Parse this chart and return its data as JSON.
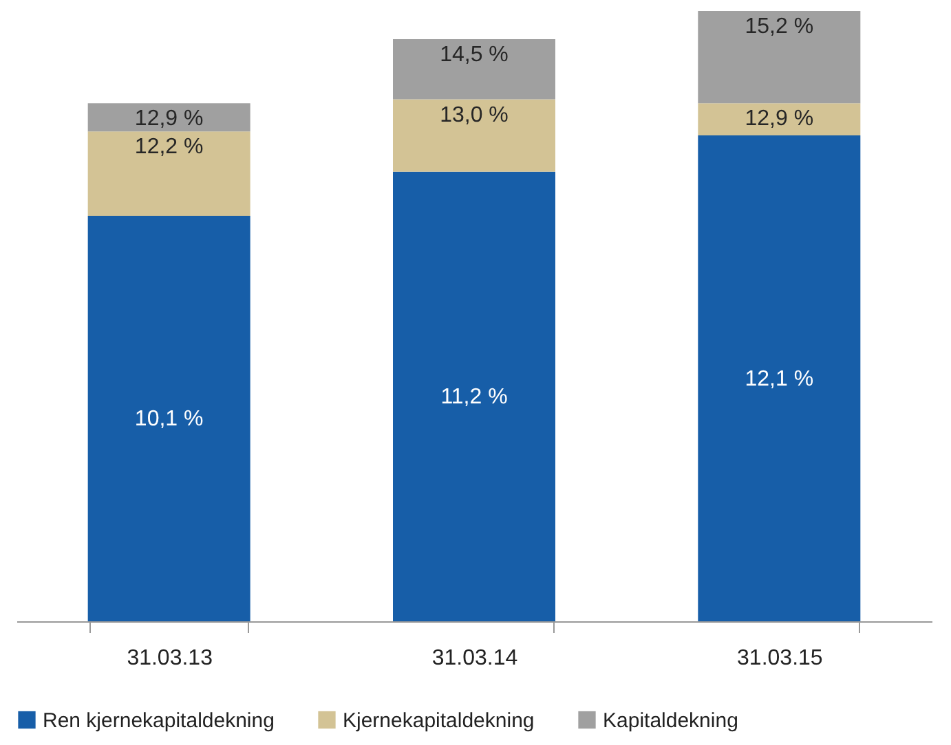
{
  "chart_data": {
    "type": "bar",
    "stacked": true,
    "categories": [
      "31.03.13",
      "31.03.14",
      "31.03.15"
    ],
    "series": [
      {
        "name": "Ren kjernekapitaldekning",
        "color": "#175ea8",
        "values": [
          10.1,
          11.2,
          12.1
        ],
        "value_labels": [
          "10,1 %",
          "11,2 %",
          "12,1 %"
        ]
      },
      {
        "name": "Kjernekapitaldekning",
        "color": "#d3c395",
        "values": [
          2.1,
          1.8,
          0.8
        ]
      },
      {
        "name": "Kapitaldekning",
        "color": "#a0a0a0",
        "values": [
          0.7,
          1.5,
          2.3
        ]
      }
    ],
    "annotations": [
      {
        "text": "12,2 %",
        "x": "31.03.13",
        "y": 12.2
      },
      {
        "text": "12,9 %",
        "x": "31.03.13",
        "y": 12.9
      },
      {
        "text": "13,0 %",
        "x": "31.03.14",
        "y": 13.0
      },
      {
        "text": "14,5 %",
        "x": "31.03.14",
        "y": 14.5
      },
      {
        "text": "12,9 %",
        "x": "31.03.15",
        "y": 12.9
      },
      {
        "text": "15,2 %",
        "x": "31.03.15",
        "y": 15.2
      }
    ],
    "legend": "bottom",
    "tick_labels": "x",
    "grid": false
  }
}
